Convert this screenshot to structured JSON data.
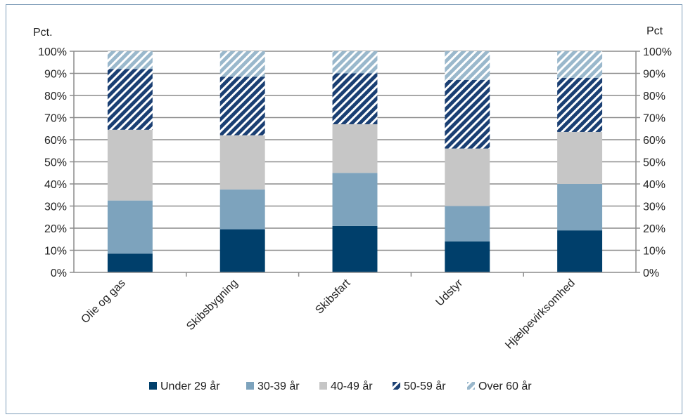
{
  "chart_data": {
    "type": "bar",
    "stacked": true,
    "categories": [
      "Olie og gas",
      "Skibsbygning",
      "Skibsfart",
      "Udstyr",
      "Hjælpevirksomhed"
    ],
    "series": [
      {
        "name": "Under 29 år",
        "values": [
          8.5,
          19.5,
          21,
          14,
          19
        ],
        "color": "#003f6b",
        "pattern": "solid"
      },
      {
        "name": "30-39 år",
        "values": [
          24,
          18,
          24,
          16,
          21
        ],
        "color": "#7da3bd",
        "pattern": "solid"
      },
      {
        "name": "40-49 år",
        "values": [
          32,
          24.5,
          22,
          26,
          23.5
        ],
        "color": "#c6c6c6",
        "pattern": "solid"
      },
      {
        "name": "50-59 år",
        "values": [
          27.5,
          26.5,
          23,
          31,
          24.5
        ],
        "color": "#1a3f73",
        "pattern": "diagonal-dark"
      },
      {
        "name": "Over 60 år",
        "values": [
          8,
          11.5,
          10,
          13,
          12
        ],
        "color": "#9ab8cc",
        "pattern": "diagonal-light"
      }
    ],
    "ylim": [
      0,
      100
    ],
    "yticks": [
      "0%",
      "10%",
      "20%",
      "30%",
      "40%",
      "50%",
      "60%",
      "70%",
      "80%",
      "90%",
      "100%"
    ],
    "ylabel_left": "Pct.",
    "ylabel_right": "Pct",
    "grid": true,
    "legend_position": "bottom"
  }
}
